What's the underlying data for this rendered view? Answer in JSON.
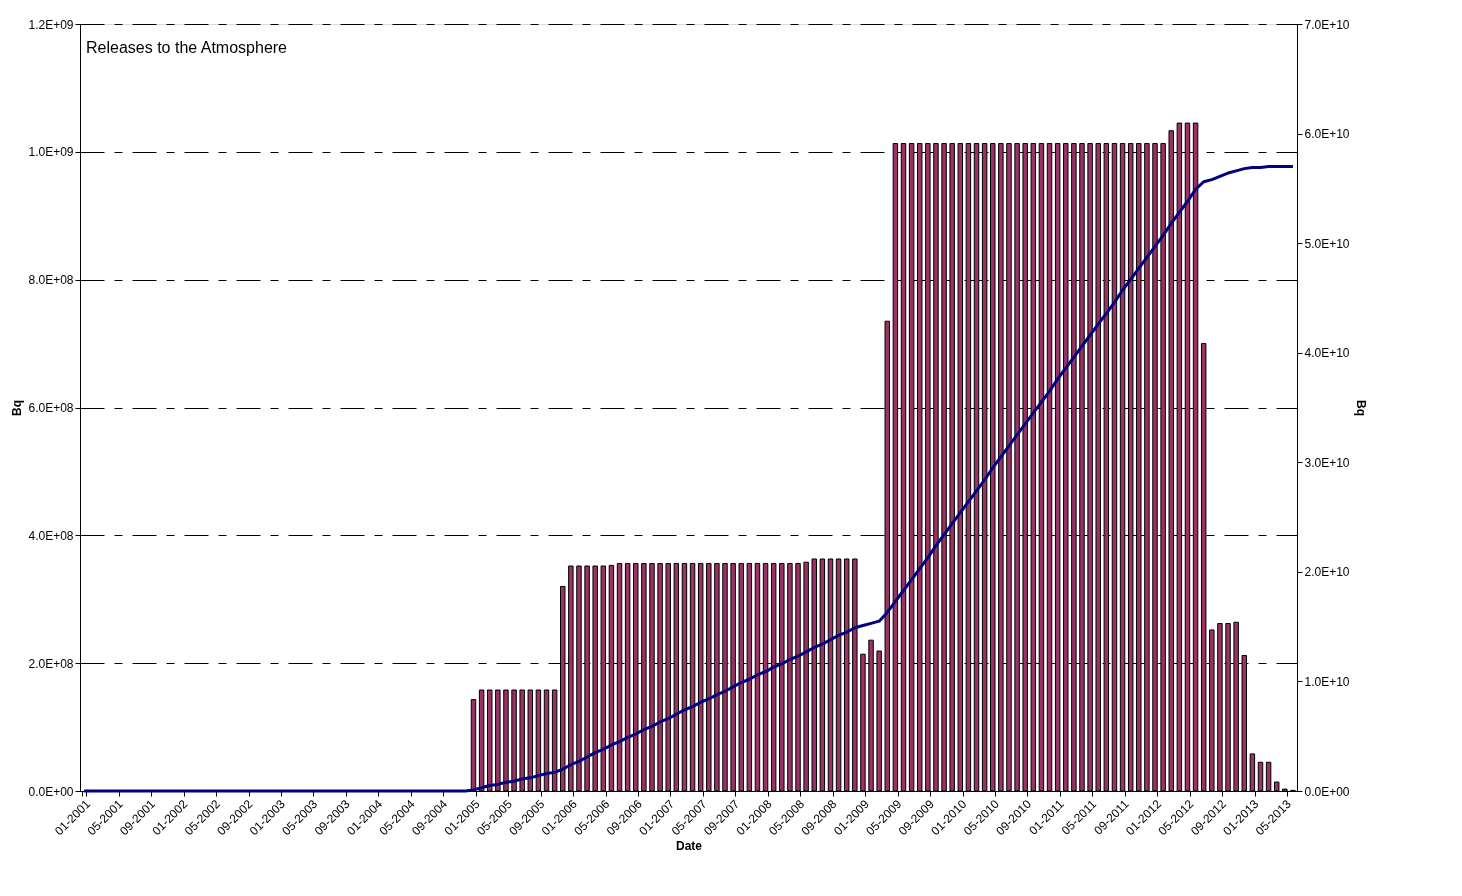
{
  "chart_data": {
    "type": "bar",
    "xlabel": "Date",
    "ylabel": "Bq",
    "y2label": "Bq",
    "annotations": [
      "Releases to the Atmosphere"
    ],
    "categories": [
      "01-2001",
      null,
      null,
      null,
      "05-2001",
      null,
      null,
      null,
      "09-2001",
      null,
      null,
      null,
      "01-2002",
      null,
      null,
      null,
      "05-2002",
      null,
      null,
      null,
      "09-2002",
      null,
      null,
      null,
      "01-2003",
      null,
      null,
      null,
      "05-2003",
      null,
      null,
      null,
      "09-2003",
      null,
      null,
      null,
      "01-2004",
      null,
      null,
      null,
      "05-2004",
      null,
      null,
      null,
      "09-2004",
      null,
      null,
      null,
      "01-2005",
      null,
      null,
      null,
      "05-2005",
      null,
      null,
      null,
      "09-2005",
      null,
      null,
      null,
      "01-2006",
      null,
      null,
      null,
      "05-2006",
      null,
      null,
      null,
      "09-2006",
      null,
      null,
      null,
      "01-2007",
      null,
      null,
      null,
      "05-2007",
      null,
      null,
      null,
      "09-2007",
      null,
      null,
      null,
      "01-2008",
      null,
      null,
      null,
      "05-2008",
      null,
      null,
      null,
      "09-2008",
      null,
      null,
      null,
      "01-2009",
      null,
      null,
      null,
      "05-2009",
      null,
      null,
      null,
      "09-2009",
      null,
      null,
      null,
      "01-2010",
      null,
      null,
      null,
      "05-2010",
      null,
      null,
      null,
      "09-2010",
      null,
      null,
      null,
      "01-2011",
      null,
      null,
      null,
      "05-2011",
      null,
      null,
      null,
      "09-2011",
      null,
      null,
      null,
      "01-2012",
      null,
      null,
      null,
      "05-2012",
      null,
      null,
      null,
      "09-2012",
      null,
      null,
      null,
      "01-2013",
      null,
      null,
      null,
      "05-2013",
      null
    ],
    "series": [
      {
        "color": "#993366",
        "values": [
          0,
          0,
          0,
          0,
          0,
          0,
          0,
          0,
          0,
          0,
          0,
          0,
          0,
          0,
          0,
          0,
          0,
          0,
          0,
          0,
          0,
          0,
          0,
          0,
          0,
          0,
          0,
          0,
          0,
          0,
          0,
          0,
          0,
          0,
          0,
          0,
          0,
          0,
          0,
          0,
          0,
          0,
          0,
          0,
          0,
          0,
          0,
          0,
          143000000.0,
          158000000.0,
          158000000.0,
          158000000.0,
          158000000.0,
          158000000.0,
          158000000.0,
          158000000.0,
          158000000.0,
          158000000.0,
          158000000.0,
          320000000.0,
          352000000.0,
          352000000.0,
          352000000.0,
          352000000.0,
          352000000.0,
          353000000.0,
          356000000.0,
          356000000.0,
          356000000.0,
          356000000.0,
          356000000.0,
          356000000.0,
          356000000.0,
          356000000.0,
          356000000.0,
          356000000.0,
          356000000.0,
          356000000.0,
          356000000.0,
          356000000.0,
          356000000.0,
          356000000.0,
          356000000.0,
          356000000.0,
          356000000.0,
          356000000.0,
          356000000.0,
          356000000.0,
          356000000.0,
          358000000.0,
          363000000.0,
          363000000.0,
          363000000.0,
          363000000.0,
          363000000.0,
          363000000.0,
          214000000.0,
          236000000.0,
          219000000.0,
          735000000.0,
          1013000000.0,
          1013000000.0,
          1013000000.0,
          1013000000.0,
          1013000000.0,
          1013000000.0,
          1013000000.0,
          1013000000.0,
          1013000000.0,
          1013000000.0,
          1013000000.0,
          1013000000.0,
          1013000000.0,
          1013000000.0,
          1013000000.0,
          1013000000.0,
          1013000000.0,
          1013000000.0,
          1013000000.0,
          1013000000.0,
          1013000000.0,
          1013000000.0,
          1013000000.0,
          1013000000.0,
          1013000000.0,
          1013000000.0,
          1013000000.0,
          1013000000.0,
          1013000000.0,
          1013000000.0,
          1013000000.0,
          1013000000.0,
          1013000000.0,
          1013000000.0,
          1033000000.0,
          1045000000.0,
          1045000000.0,
          1045000000.0,
          700000000.0,
          252000000.0,
          262000000.0,
          262000000.0,
          264000000.0,
          212000000.0,
          58000000.0,
          45000000.0,
          45000000.0,
          14000000.0,
          3000000.0,
          1000000.0
        ]
      },
      {
        "type": "line",
        "axis": "y2",
        "color": "#000080",
        "values": [
          0,
          0,
          0,
          0,
          0,
          0,
          0,
          0,
          0,
          0,
          0,
          0,
          0,
          0,
          0,
          0,
          0,
          0,
          0,
          0,
          0,
          0,
          0,
          0,
          0,
          0,
          0,
          0,
          0,
          0,
          0,
          0,
          0,
          0,
          0,
          0,
          0,
          0,
          0,
          0,
          0,
          0,
          0,
          0,
          0,
          0,
          0,
          0,
          100000000.0,
          300000000.0,
          500000000.0,
          600000000.0,
          800000000.0,
          900000000.0,
          1100000000.0,
          1200000000.0,
          1400000000.0,
          1600000000.0,
          1700000000.0,
          2000000000.0,
          2400000000.0,
          2700000000.0,
          3100000000.0,
          3500000000.0,
          3800000000.0,
          4200000000.0,
          4500000000.0,
          4900000000.0,
          5200000000.0,
          5600000000.0,
          5900000000.0,
          6300000000.0,
          6600000000.0,
          7000000000.0,
          7400000000.0,
          7700000000.0,
          8100000000.0,
          8400000000.0,
          8800000000.0,
          9100000000.0,
          9500000000.0,
          9900000000.0,
          10200000000.0,
          10600000000.0,
          10900000000.0,
          11300000000.0,
          11600000000.0,
          12000000000.0,
          12300000000.0,
          12700000000.0,
          13100000000.0,
          13400000000.0,
          13800000000.0,
          14200000000.0,
          14500000000.0,
          14900000000.0,
          15100000000.0,
          15300000000.0,
          15500000000.0,
          16300000000.0,
          17300000000.0,
          18300000000.0,
          19300000000.0,
          20300000000.0,
          21300000000.0,
          22400000000.0,
          23400000000.0,
          24400000000.0,
          25400000000.0,
          26400000000.0,
          27400000000.0,
          28400000000.0,
          29500000000.0,
          30500000000.0,
          31500000000.0,
          32500000000.0,
          33500000000.0,
          34500000000.0,
          35500000000.0,
          36500000000.0,
          37600000000.0,
          38600000000.0,
          39600000000.0,
          40600000000.0,
          41600000000.0,
          42600000000.0,
          43600000000.0,
          44600000000.0,
          45700000000.0,
          46700000000.0,
          47700000000.0,
          48700000000.0,
          49700000000.0,
          50700000000.0,
          51800000000.0,
          52800000000.0,
          53800000000.0,
          54900000000.0,
          55600000000.0,
          55800000000.0,
          56100000000.0,
          56400000000.0,
          56600000000.0,
          56800000000.0,
          56900000000.0,
          56900000000.0,
          57000000000.0,
          57000000000.0,
          57000000000.0,
          57000000000.0
        ]
      }
    ],
    "ylim": [
      0,
      1200000000.0
    ],
    "yticks": [
      {
        "value": 0,
        "label": "0.0E+00"
      },
      {
        "value": 200000000.0,
        "label": "2.0E+08"
      },
      {
        "value": 400000000.0,
        "label": "4.0E+08"
      },
      {
        "value": 600000000.0,
        "label": "6.0E+08"
      },
      {
        "value": 800000000.0,
        "label": "8.0E+08"
      },
      {
        "value": 1000000000.0,
        "label": "1.0E+09"
      },
      {
        "value": 1200000000.0,
        "label": "1.2E+09"
      }
    ],
    "y2lim": [
      0,
      70000000000.0
    ],
    "y2ticks": [
      {
        "value": 0,
        "label": "0.0E+00"
      },
      {
        "value": 10000000000.0,
        "label": "1.0E+10"
      },
      {
        "value": 20000000000.0,
        "label": "2.0E+10"
      },
      {
        "value": 30000000000.0,
        "label": "3.0E+10"
      },
      {
        "value": 40000000000.0,
        "label": "4.0E+10"
      },
      {
        "value": 50000000000.0,
        "label": "5.0E+10"
      },
      {
        "value": 60000000000.0,
        "label": "6.0E+10"
      },
      {
        "value": 70000000000.0,
        "label": "7.0E+10"
      }
    ],
    "grid": "y"
  }
}
